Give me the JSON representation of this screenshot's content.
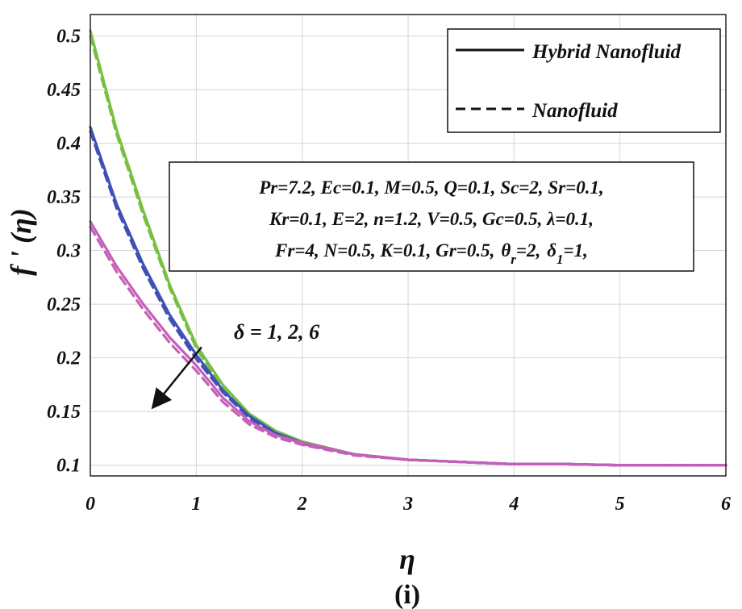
{
  "chart_data": {
    "type": "line",
    "xlabel": "η",
    "ylabel": "f ' (η)",
    "caption": "(i)",
    "xlim": [
      0,
      6
    ],
    "ylim": [
      0.09,
      0.52
    ],
    "xticks": [
      0,
      1,
      2,
      3,
      4,
      5,
      6
    ],
    "yticks": [
      0.1,
      0.15,
      0.2,
      0.25,
      0.3,
      0.35,
      0.4,
      0.45,
      0.5
    ],
    "ytick_labels": [
      "0.1",
      "0.15",
      "0.2",
      "0.25",
      "0.3",
      "0.35",
      "0.4",
      "0.45",
      "0.5"
    ],
    "grid": true,
    "legend": {
      "position": "top-right",
      "entries": [
        {
          "label": "Hybrid Nanofluid",
          "style": "solid"
        },
        {
          "label": "Nanofluid",
          "style": "dashed"
        }
      ]
    },
    "parameter_box": [
      "Pr=7.2, Ec=0.1, M=0.5, Q=0.1, Sc=2, Sr=0.1,",
      "Kr=0.1, E=2, n=1.2, V=0.5, Gc=0.5, λ=0.1,",
      "Fr=4, N=0.5, K=0.1, Gr=0.5,"
    ],
    "parameter_box_tail": {
      "theta": "θ",
      "theta_sub": "r",
      "theta_val": "=2,",
      "delta": "δ",
      "delta_sub": "1",
      "delta_val": "=1,"
    },
    "annotation": {
      "text": "δ = 1, 2, 6",
      "from": [
        1.05,
        0.21
      ],
      "to": [
        0.6,
        0.155
      ]
    },
    "x": [
      0,
      0.25,
      0.5,
      0.75,
      1,
      1.25,
      1.5,
      1.75,
      2,
      2.5,
      3,
      3.5,
      4,
      4.5,
      5,
      5.5,
      6
    ],
    "series": [
      {
        "delta": "1",
        "color": "#77c043",
        "style": "solid",
        "values": [
          0.505,
          0.412,
          0.337,
          0.268,
          0.212,
          0.175,
          0.148,
          0.132,
          0.122,
          0.11,
          0.105,
          0.103,
          0.101,
          0.101,
          0.1,
          0.1,
          0.1
        ]
      },
      {
        "delta": "1",
        "color": "#77c043",
        "style": "dashed",
        "values": [
          0.5,
          0.408,
          0.333,
          0.265,
          0.209,
          0.172,
          0.146,
          0.131,
          0.121,
          0.11,
          0.105,
          0.103,
          0.101,
          0.101,
          0.1,
          0.1,
          0.1
        ]
      },
      {
        "delta": "2",
        "color": "#3f51b5",
        "style": "solid",
        "values": [
          0.415,
          0.343,
          0.287,
          0.24,
          0.203,
          0.17,
          0.146,
          0.13,
          0.121,
          0.11,
          0.105,
          0.103,
          0.101,
          0.101,
          0.1,
          0.1,
          0.1
        ]
      },
      {
        "delta": "2",
        "color": "#3f51b5",
        "style": "dashed",
        "values": [
          0.411,
          0.339,
          0.283,
          0.236,
          0.199,
          0.168,
          0.144,
          0.129,
          0.12,
          0.11,
          0.105,
          0.103,
          0.101,
          0.101,
          0.1,
          0.1,
          0.1
        ]
      },
      {
        "delta": "6",
        "color": "#c55fb8",
        "style": "solid",
        "values": [
          0.327,
          0.285,
          0.25,
          0.219,
          0.193,
          0.163,
          0.141,
          0.128,
          0.121,
          0.11,
          0.105,
          0.103,
          0.101,
          0.101,
          0.1,
          0.1,
          0.1
        ]
      },
      {
        "delta": "6",
        "color": "#c55fb8",
        "style": "dashed",
        "values": [
          0.322,
          0.28,
          0.245,
          0.214,
          0.188,
          0.159,
          0.138,
          0.126,
          0.119,
          0.109,
          0.105,
          0.103,
          0.101,
          0.101,
          0.1,
          0.1,
          0.1
        ]
      }
    ]
  }
}
